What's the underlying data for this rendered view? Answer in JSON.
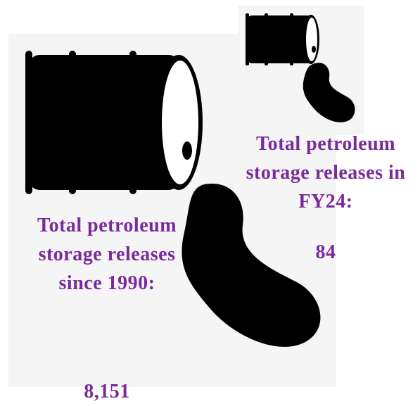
{
  "panels": [
    {
      "label": "Total petroleum storage releases since 1990:",
      "value": "8,151"
    },
    {
      "label": "Total petroleum storage releases in FY24:",
      "value": "84"
    }
  ]
}
